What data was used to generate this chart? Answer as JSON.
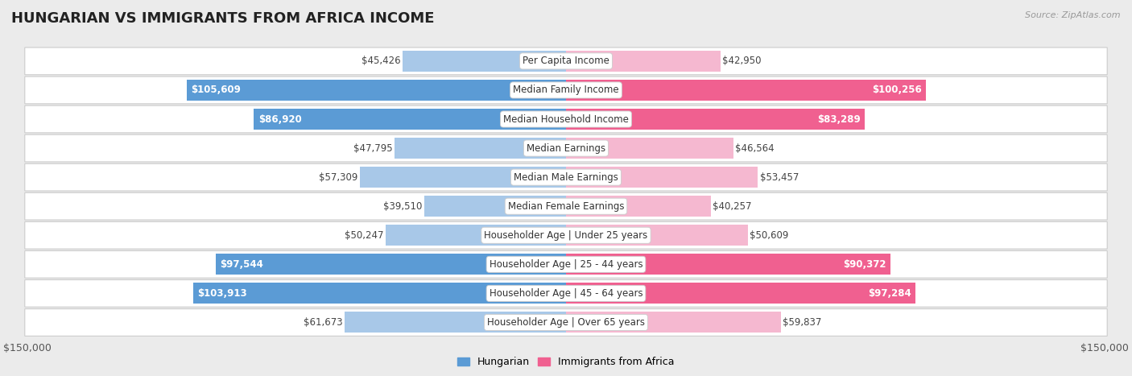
{
  "title": "HUNGARIAN VS IMMIGRANTS FROM AFRICA INCOME",
  "source": "Source: ZipAtlas.com",
  "categories": [
    "Per Capita Income",
    "Median Family Income",
    "Median Household Income",
    "Median Earnings",
    "Median Male Earnings",
    "Median Female Earnings",
    "Householder Age | Under 25 years",
    "Householder Age | 25 - 44 years",
    "Householder Age | 45 - 64 years",
    "Householder Age | Over 65 years"
  ],
  "hungarian_values": [
    45426,
    105609,
    86920,
    47795,
    57309,
    39510,
    50247,
    97544,
    103913,
    61673
  ],
  "africa_values": [
    42950,
    100256,
    83289,
    46564,
    53457,
    40257,
    50609,
    90372,
    97284,
    59837
  ],
  "hungarian_labels": [
    "$45,426",
    "$105,609",
    "$86,920",
    "$47,795",
    "$57,309",
    "$39,510",
    "$50,247",
    "$97,544",
    "$103,913",
    "$61,673"
  ],
  "africa_labels": [
    "$42,950",
    "$100,256",
    "$83,289",
    "$46,564",
    "$53,457",
    "$40,257",
    "$50,609",
    "$90,372",
    "$97,284",
    "$59,837"
  ],
  "max_value": 150000,
  "hungarian_color_low": "#a8c8e8",
  "hungarian_color_high": "#5b9bd5",
  "africa_color_low": "#f5b8d0",
  "africa_color_high": "#f06090",
  "background_color": "#ebebeb",
  "bar_background": "#ffffff",
  "label_threshold": 70000,
  "title_fontsize": 13,
  "tick_label_fontsize": 9,
  "bar_label_fontsize": 8.5,
  "category_fontsize": 8.5,
  "legend_color_hungarian": "#5b9bd5",
  "legend_color_africa": "#f06090"
}
